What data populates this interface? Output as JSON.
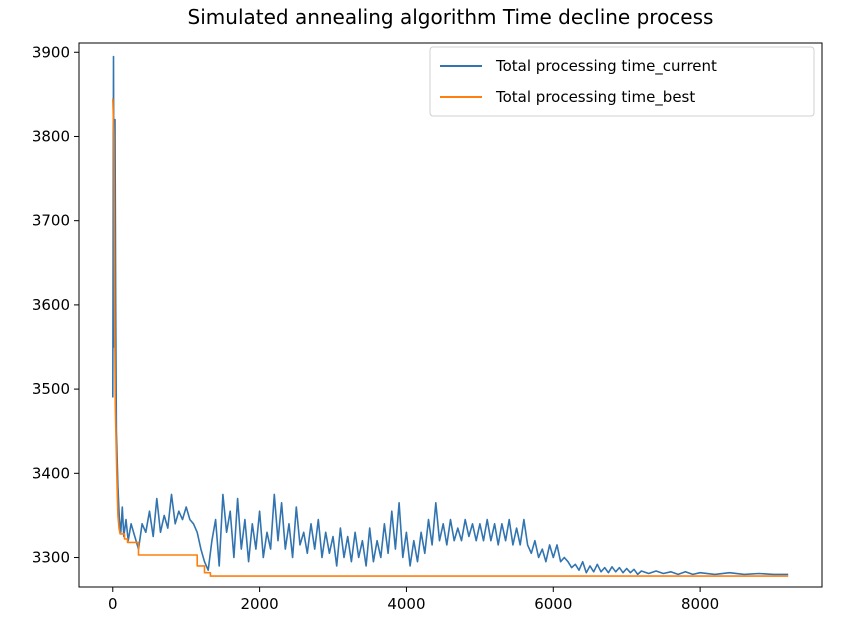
{
  "chart_data": {
    "type": "line",
    "title": "Simulated annealing algorithm Time decline process",
    "xlabel": "",
    "ylabel": "",
    "xlim": [
      -460,
      9660
    ],
    "ylim": [
      3265,
      3911
    ],
    "xticks": [
      0,
      2000,
      4000,
      6000,
      8000
    ],
    "yticks": [
      3300,
      3400,
      3500,
      3600,
      3700,
      3800,
      3900
    ],
    "grid": false,
    "legend": "top-right",
    "colors": {
      "current": "#3274b0",
      "best": "#ff7f0e"
    },
    "series": [
      {
        "name": "Total processing time_current",
        "points": [
          [
            0,
            3490
          ],
          [
            10,
            3895
          ],
          [
            15,
            3700
          ],
          [
            20,
            3550
          ],
          [
            30,
            3820
          ],
          [
            40,
            3600
          ],
          [
            50,
            3450
          ],
          [
            70,
            3385
          ],
          [
            90,
            3345
          ],
          [
            110,
            3330
          ],
          [
            130,
            3360
          ],
          [
            150,
            3325
          ],
          [
            180,
            3345
          ],
          [
            210,
            3320
          ],
          [
            250,
            3340
          ],
          [
            300,
            3325
          ],
          [
            350,
            3310
          ],
          [
            400,
            3340
          ],
          [
            450,
            3330
          ],
          [
            500,
            3355
          ],
          [
            550,
            3325
          ],
          [
            600,
            3370
          ],
          [
            650,
            3330
          ],
          [
            700,
            3350
          ],
          [
            750,
            3335
          ],
          [
            800,
            3375
          ],
          [
            850,
            3340
          ],
          [
            900,
            3355
          ],
          [
            950,
            3345
          ],
          [
            1000,
            3360
          ],
          [
            1050,
            3345
          ],
          [
            1100,
            3340
          ],
          [
            1150,
            3330
          ],
          [
            1200,
            3310
          ],
          [
            1250,
            3295
          ],
          [
            1300,
            3285
          ],
          [
            1350,
            3320
          ],
          [
            1400,
            3345
          ],
          [
            1450,
            3290
          ],
          [
            1500,
            3375
          ],
          [
            1550,
            3330
          ],
          [
            1600,
            3355
          ],
          [
            1650,
            3300
          ],
          [
            1700,
            3370
          ],
          [
            1750,
            3310
          ],
          [
            1800,
            3345
          ],
          [
            1850,
            3295
          ],
          [
            1900,
            3340
          ],
          [
            1950,
            3310
          ],
          [
            2000,
            3355
          ],
          [
            2050,
            3300
          ],
          [
            2100,
            3330
          ],
          [
            2150,
            3310
          ],
          [
            2200,
            3375
          ],
          [
            2250,
            3320
          ],
          [
            2300,
            3365
          ],
          [
            2350,
            3310
          ],
          [
            2400,
            3340
          ],
          [
            2450,
            3300
          ],
          [
            2500,
            3360
          ],
          [
            2550,
            3315
          ],
          [
            2600,
            3330
          ],
          [
            2650,
            3305
          ],
          [
            2700,
            3340
          ],
          [
            2750,
            3310
          ],
          [
            2800,
            3345
          ],
          [
            2850,
            3300
          ],
          [
            2900,
            3330
          ],
          [
            2950,
            3305
          ],
          [
            3000,
            3325
          ],
          [
            3050,
            3290
          ],
          [
            3100,
            3335
          ],
          [
            3150,
            3300
          ],
          [
            3200,
            3325
          ],
          [
            3250,
            3295
          ],
          [
            3300,
            3330
          ],
          [
            3350,
            3300
          ],
          [
            3400,
            3320
          ],
          [
            3450,
            3290
          ],
          [
            3500,
            3335
          ],
          [
            3550,
            3295
          ],
          [
            3600,
            3320
          ],
          [
            3650,
            3300
          ],
          [
            3700,
            3340
          ],
          [
            3750,
            3305
          ],
          [
            3800,
            3355
          ],
          [
            3850,
            3310
          ],
          [
            3900,
            3365
          ],
          [
            3950,
            3300
          ],
          [
            4000,
            3330
          ],
          [
            4050,
            3290
          ],
          [
            4100,
            3320
          ],
          [
            4150,
            3295
          ],
          [
            4200,
            3330
          ],
          [
            4250,
            3305
          ],
          [
            4300,
            3345
          ],
          [
            4350,
            3315
          ],
          [
            4400,
            3365
          ],
          [
            4450,
            3320
          ],
          [
            4500,
            3340
          ],
          [
            4550,
            3315
          ],
          [
            4600,
            3345
          ],
          [
            4650,
            3320
          ],
          [
            4700,
            3335
          ],
          [
            4750,
            3320
          ],
          [
            4800,
            3345
          ],
          [
            4850,
            3325
          ],
          [
            4900,
            3340
          ],
          [
            4950,
            3320
          ],
          [
            5000,
            3340
          ],
          [
            5050,
            3320
          ],
          [
            5100,
            3345
          ],
          [
            5150,
            3320
          ],
          [
            5200,
            3340
          ],
          [
            5250,
            3315
          ],
          [
            5300,
            3340
          ],
          [
            5350,
            3320
          ],
          [
            5400,
            3345
          ],
          [
            5450,
            3315
          ],
          [
            5500,
            3335
          ],
          [
            5550,
            3315
          ],
          [
            5600,
            3345
          ],
          [
            5650,
            3315
          ],
          [
            5700,
            3305
          ],
          [
            5750,
            3320
          ],
          [
            5800,
            3300
          ],
          [
            5850,
            3310
          ],
          [
            5900,
            3295
          ],
          [
            5950,
            3315
          ],
          [
            6000,
            3300
          ],
          [
            6050,
            3315
          ],
          [
            6100,
            3295
          ],
          [
            6150,
            3300
          ],
          [
            6200,
            3295
          ],
          [
            6250,
            3288
          ],
          [
            6300,
            3292
          ],
          [
            6350,
            3285
          ],
          [
            6400,
            3295
          ],
          [
            6450,
            3282
          ],
          [
            6500,
            3290
          ],
          [
            6550,
            3283
          ],
          [
            6600,
            3292
          ],
          [
            6650,
            3283
          ],
          [
            6700,
            3288
          ],
          [
            6750,
            3282
          ],
          [
            6800,
            3289
          ],
          [
            6850,
            3283
          ],
          [
            6900,
            3288
          ],
          [
            6950,
            3282
          ],
          [
            7000,
            3287
          ],
          [
            7050,
            3282
          ],
          [
            7100,
            3286
          ],
          [
            7150,
            3280
          ],
          [
            7200,
            3284
          ],
          [
            7300,
            3281
          ],
          [
            7400,
            3284
          ],
          [
            7500,
            3281
          ],
          [
            7600,
            3283
          ],
          [
            7700,
            3280
          ],
          [
            7800,
            3283
          ],
          [
            7900,
            3280
          ],
          [
            8000,
            3282
          ],
          [
            8200,
            3280
          ],
          [
            8400,
            3282
          ],
          [
            8600,
            3280
          ],
          [
            8800,
            3281
          ],
          [
            9000,
            3280
          ],
          [
            9200,
            3280
          ]
        ]
      },
      {
        "name": "Total processing time_best",
        "points": [
          [
            0,
            3845
          ],
          [
            15,
            3800
          ],
          [
            25,
            3600
          ],
          [
            35,
            3480
          ],
          [
            50,
            3420
          ],
          [
            60,
            3380
          ],
          [
            70,
            3350
          ],
          [
            85,
            3335
          ],
          [
            100,
            3328
          ],
          [
            160,
            3328
          ],
          [
            160,
            3322
          ],
          [
            200,
            3322
          ],
          [
            200,
            3318
          ],
          [
            350,
            3318
          ],
          [
            350,
            3303
          ],
          [
            1150,
            3303
          ],
          [
            1150,
            3290
          ],
          [
            1250,
            3290
          ],
          [
            1250,
            3282
          ],
          [
            1330,
            3282
          ],
          [
            1330,
            3278
          ],
          [
            9200,
            3278
          ]
        ]
      }
    ]
  }
}
